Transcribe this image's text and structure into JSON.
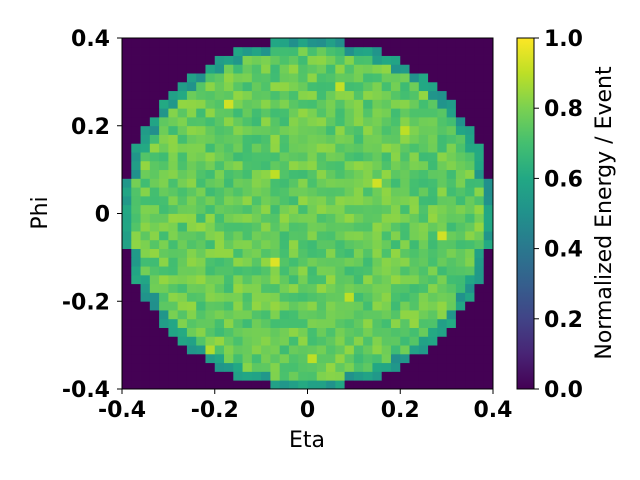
{
  "chart_data": {
    "type": "heatmap",
    "xlabel": "Eta",
    "ylabel": "Phi",
    "colorbar_label": "Normalized Energy / Event",
    "xlim": [
      -0.4,
      0.4
    ],
    "ylim": [
      -0.4,
      0.4
    ],
    "clim": [
      0.0,
      1.0
    ],
    "colormap": "viridis",
    "grid": false,
    "bins": {
      "nx": 40,
      "ny": 40
    },
    "region": {
      "shape": "disk",
      "center": [
        0,
        0
      ],
      "radius": 0.4
    },
    "typical_inside_value": 0.78,
    "inside_value_range": [
      0.68,
      0.95
    ],
    "outside_value": 0.0,
    "edge_value_approx": 0.55,
    "hotspots": [
      {
        "eta": -0.165,
        "phi": 0.245,
        "value": 0.93
      },
      {
        "eta": -0.065,
        "phi": 0.085,
        "value": 0.9
      },
      {
        "eta": 0.075,
        "phi": 0.295,
        "value": 0.91
      },
      {
        "eta": -0.075,
        "phi": -0.115,
        "value": 0.98
      },
      {
        "eta": 0.145,
        "phi": 0.065,
        "value": 0.93
      },
      {
        "eta": 0.205,
        "phi": 0.185,
        "value": 0.9
      },
      {
        "eta": 0.295,
        "phi": -0.045,
        "value": 0.93
      },
      {
        "eta": 0.095,
        "phi": -0.185,
        "value": 0.9
      },
      {
        "eta": 0.005,
        "phi": -0.325,
        "value": 0.9
      },
      {
        "eta": -0.215,
        "phi": -0.305,
        "value": 0.88
      }
    ],
    "xticks": [
      "-0.4",
      "-0.2",
      "0",
      "0.2",
      "0.4"
    ],
    "xtick_values": [
      -0.4,
      -0.2,
      0,
      0.2,
      0.4
    ],
    "yticks": [
      "0.4",
      "0.2",
      "0",
      "-0.2",
      "-0.4"
    ],
    "ytick_values": [
      0.4,
      0.2,
      0,
      -0.2,
      -0.4
    ],
    "cbar_ticks": [
      "1.0",
      "0.8",
      "0.6",
      "0.4",
      "0.2",
      "0.0"
    ],
    "cbar_tick_values": [
      1.0,
      0.8,
      0.6,
      0.4,
      0.2,
      0.0
    ]
  }
}
